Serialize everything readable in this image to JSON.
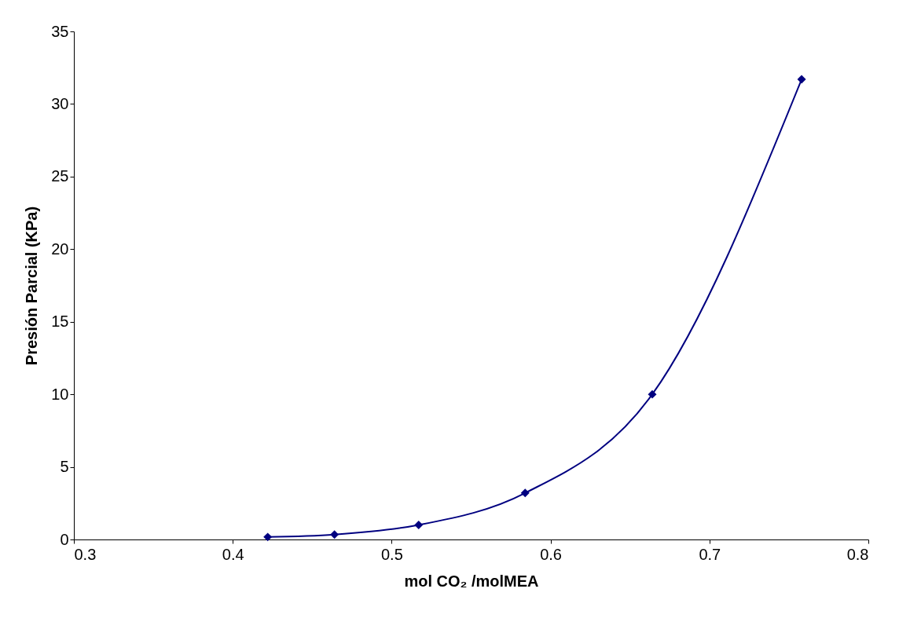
{
  "chart_data": {
    "type": "line",
    "xlabel": "mol CO₂ /molMEA",
    "ylabel": "Presión Parcial (KPa)",
    "x": [
      0.422,
      0.464,
      0.517,
      0.584,
      0.664,
      0.758
    ],
    "series": [
      {
        "color": "#000080",
        "values": [
          0.17,
          0.34,
          1.0,
          3.2,
          10.0,
          31.7
        ]
      }
    ],
    "xlim": [
      0.3,
      0.8
    ],
    "xticks": [
      {
        "value": 0.3,
        "label": "0.3"
      },
      {
        "value": 0.4,
        "label": "0.4"
      },
      {
        "value": 0.5,
        "label": "0.5"
      },
      {
        "value": 0.6,
        "label": "0.6"
      },
      {
        "value": 0.7,
        "label": "0.7"
      },
      {
        "value": 0.8,
        "label": "0.8"
      }
    ],
    "ylim": [
      0,
      35
    ],
    "yticks": [
      0,
      5,
      10,
      15,
      20,
      25,
      30,
      35
    ],
    "grid": false,
    "legend": false,
    "marker": "diamond",
    "line_style": "solid"
  }
}
